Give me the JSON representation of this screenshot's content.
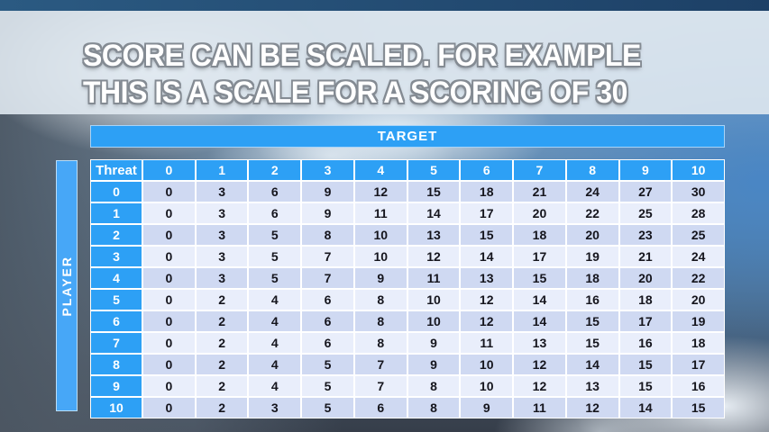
{
  "slide": {
    "title_line1": "SCORE CAN BE SCALED. FOR EXAMPLE",
    "title_line2": "THIS IS A SCALE FOR A SCORING OF 30"
  },
  "table": {
    "target_label": "TARGET",
    "player_label": "PLAYER",
    "corner_label": "Threat",
    "column_headers": [
      "0",
      "1",
      "2",
      "3",
      "4",
      "5",
      "6",
      "7",
      "8",
      "9",
      "10"
    ],
    "rows": [
      {
        "header": "0",
        "values": [
          0,
          3,
          6,
          9,
          12,
          15,
          18,
          21,
          24,
          27,
          30
        ]
      },
      {
        "header": "1",
        "values": [
          0,
          3,
          6,
          9,
          11,
          14,
          17,
          20,
          22,
          25,
          28
        ]
      },
      {
        "header": "2",
        "values": [
          0,
          3,
          5,
          8,
          10,
          13,
          15,
          18,
          20,
          23,
          25
        ]
      },
      {
        "header": "3",
        "values": [
          0,
          3,
          5,
          7,
          10,
          12,
          14,
          17,
          19,
          21,
          24
        ]
      },
      {
        "header": "4",
        "values": [
          0,
          3,
          5,
          7,
          9,
          11,
          13,
          15,
          18,
          20,
          22
        ]
      },
      {
        "header": "5",
        "values": [
          0,
          2,
          4,
          6,
          8,
          10,
          12,
          14,
          16,
          18,
          20
        ]
      },
      {
        "header": "6",
        "values": [
          0,
          2,
          4,
          6,
          8,
          10,
          12,
          14,
          15,
          17,
          19
        ]
      },
      {
        "header": "7",
        "values": [
          0,
          2,
          4,
          6,
          8,
          9,
          11,
          13,
          15,
          16,
          18
        ]
      },
      {
        "header": "8",
        "values": [
          0,
          2,
          4,
          5,
          7,
          9,
          10,
          12,
          14,
          15,
          17
        ]
      },
      {
        "header": "9",
        "values": [
          0,
          2,
          4,
          5,
          7,
          8,
          10,
          12,
          13,
          15,
          16
        ]
      },
      {
        "header": "10",
        "values": [
          0,
          2,
          3,
          5,
          6,
          8,
          9,
          11,
          12,
          14,
          15
        ]
      }
    ]
  },
  "colors": {
    "header_blue": "#2da0f5",
    "player_blue": "#47a7f7",
    "row_even": "#cfd9f2",
    "row_odd": "#e9eefb",
    "cell_text": "#15151d",
    "top_bar": "#234d74",
    "title_text": "#ffffff"
  }
}
